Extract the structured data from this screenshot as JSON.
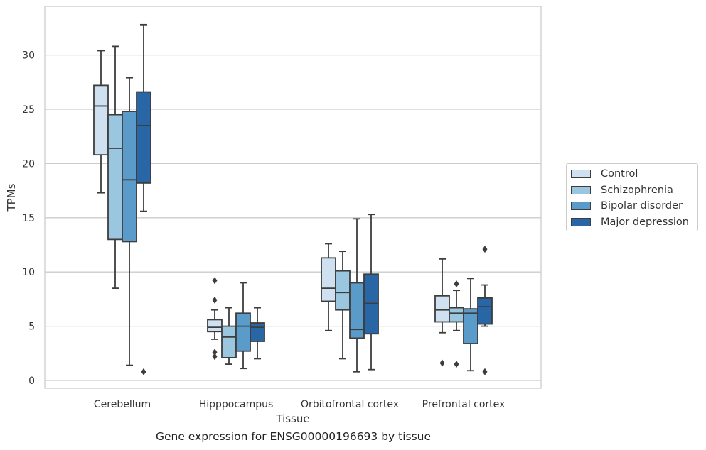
{
  "chart_data": {
    "type": "box",
    "title": "",
    "caption": "Gene expression for ENSG00000196693 by tissue",
    "xlabel": "Tissue",
    "ylabel": "TPMs",
    "ylim": [
      -0.8,
      34.3
    ],
    "yticks": [
      0,
      5,
      10,
      15,
      20,
      25,
      30
    ],
    "grid": "horizontal",
    "legend_position": "right",
    "categories": [
      "Cerebellum",
      "Hipppocampus",
      "Orbitofrontal cortex",
      "Prefrontal cortex"
    ],
    "series": [
      {
        "name": "Control",
        "color": "#cfe0f1",
        "boxes": [
          {
            "whislo": 17.3,
            "q1": 20.8,
            "med": 25.3,
            "q3": 27.2,
            "whishi": 30.4,
            "fliers": []
          },
          {
            "whislo": 3.8,
            "q1": 4.5,
            "med": 4.9,
            "q3": 5.6,
            "whishi": 6.5,
            "fliers": [
              2.2,
              2.6,
              7.4,
              9.2
            ]
          },
          {
            "whislo": 4.6,
            "q1": 7.3,
            "med": 8.5,
            "q3": 11.3,
            "whishi": 12.6,
            "fliers": []
          },
          {
            "whislo": 4.4,
            "q1": 5.4,
            "med": 6.5,
            "q3": 7.8,
            "whishi": 11.2,
            "fliers": [
              1.6
            ]
          }
        ]
      },
      {
        "name": "Schizophrenia",
        "color": "#9ac6e0",
        "boxes": [
          {
            "whislo": 8.5,
            "q1": 13.0,
            "med": 21.4,
            "q3": 24.5,
            "whishi": 30.8,
            "fliers": []
          },
          {
            "whislo": 1.5,
            "q1": 2.1,
            "med": 4.0,
            "q3": 5.0,
            "whishi": 6.7,
            "fliers": []
          },
          {
            "whislo": 2.0,
            "q1": 6.5,
            "med": 8.1,
            "q3": 10.1,
            "whishi": 11.9,
            "fliers": []
          },
          {
            "whislo": 4.6,
            "q1": 5.4,
            "med": 6.2,
            "q3": 6.7,
            "whishi": 8.3,
            "fliers": [
              1.5,
              8.9
            ]
          }
        ]
      },
      {
        "name": "Bipolar disorder",
        "color": "#5a9bc9",
        "boxes": [
          {
            "whislo": 1.4,
            "q1": 12.8,
            "med": 18.5,
            "q3": 24.8,
            "whishi": 27.9,
            "fliers": []
          },
          {
            "whislo": 1.1,
            "q1": 2.7,
            "med": 5.0,
            "q3": 6.2,
            "whishi": 9.0,
            "fliers": []
          },
          {
            "whislo": 0.8,
            "q1": 3.9,
            "med": 4.7,
            "q3": 9.0,
            "whishi": 14.9,
            "fliers": []
          },
          {
            "whislo": 0.9,
            "q1": 3.4,
            "med": 6.2,
            "q3": 6.6,
            "whishi": 9.4,
            "fliers": []
          }
        ]
      },
      {
        "name": "Major depression",
        "color": "#2966a6",
        "boxes": [
          {
            "whislo": 15.6,
            "q1": 18.2,
            "med": 23.5,
            "q3": 26.6,
            "whishi": 32.8,
            "fliers": [
              0.8
            ]
          },
          {
            "whislo": 2.0,
            "q1": 3.6,
            "med": 4.9,
            "q3": 5.3,
            "whishi": 6.7,
            "fliers": []
          },
          {
            "whislo": 1.0,
            "q1": 4.3,
            "med": 7.1,
            "q3": 9.8,
            "whishi": 15.3,
            "fliers": []
          },
          {
            "whislo": 5.0,
            "q1": 5.2,
            "med": 6.8,
            "q3": 7.6,
            "whishi": 8.8,
            "fliers": [
              0.8,
              12.1
            ]
          }
        ]
      }
    ]
  }
}
